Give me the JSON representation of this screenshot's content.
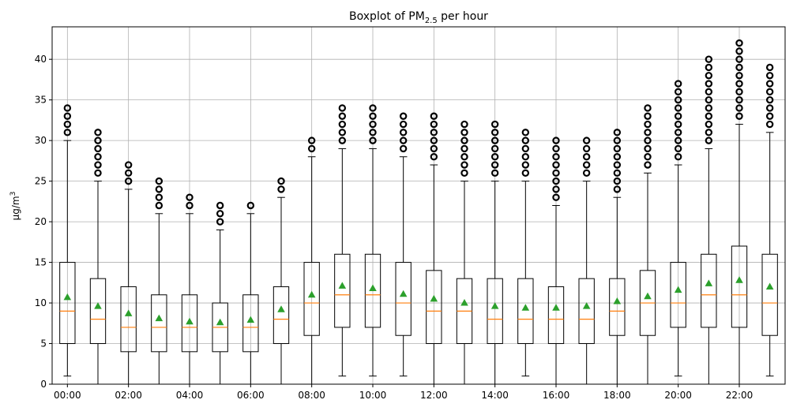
{
  "chart_data": {
    "type": "boxplot",
    "title": {
      "text": "Boxplot of PM",
      "subscript": "2.5",
      "suffix": " per hour"
    },
    "ylabel": {
      "text": "μg/m",
      "superscript": "3"
    },
    "xlabel": "",
    "ylim": [
      0,
      44
    ],
    "yticks": [
      0,
      5,
      10,
      15,
      20,
      25,
      30,
      35,
      40
    ],
    "grid": true,
    "colors": {
      "box": "#000000",
      "median": "#ff7f0e",
      "mean_marker": "#2ca02c",
      "grid": "#b0b0b0"
    },
    "xtick_labels": [
      {
        "index": 0,
        "label": "00:00"
      },
      {
        "index": 2,
        "label": "02:00"
      },
      {
        "index": 4,
        "label": "04:00"
      },
      {
        "index": 6,
        "label": "06:00"
      },
      {
        "index": 8,
        "label": "08:00"
      },
      {
        "index": 10,
        "label": "10:00"
      },
      {
        "index": 12,
        "label": "12:00"
      },
      {
        "index": 14,
        "label": "14:00"
      },
      {
        "index": 16,
        "label": "16:00"
      },
      {
        "index": 18,
        "label": "18:00"
      },
      {
        "index": 20,
        "label": "20:00"
      },
      {
        "index": 22,
        "label": "22:00"
      }
    ],
    "boxes": [
      {
        "hour": "00:00",
        "whisker_low": 1,
        "q1": 5,
        "median": 9,
        "q3": 15,
        "whisker_high": 30,
        "mean": 10.7,
        "outliers": [
          31,
          32,
          33,
          34
        ]
      },
      {
        "hour": "01:00",
        "whisker_low": 0,
        "q1": 5,
        "median": 8,
        "q3": 13,
        "whisker_high": 25,
        "mean": 9.6,
        "outliers": [
          26,
          27,
          28,
          29,
          30,
          31
        ]
      },
      {
        "hour": "02:00",
        "whisker_low": 0,
        "q1": 4,
        "median": 7,
        "q3": 12,
        "whisker_high": 24,
        "mean": 8.7,
        "outliers": [
          25,
          26,
          27
        ]
      },
      {
        "hour": "03:00",
        "whisker_low": 0,
        "q1": 4,
        "median": 7,
        "q3": 11,
        "whisker_high": 21,
        "mean": 8.1,
        "outliers": [
          22,
          23,
          24,
          25
        ]
      },
      {
        "hour": "04:00",
        "whisker_low": 0,
        "q1": 4,
        "median": 7,
        "q3": 11,
        "whisker_high": 21,
        "mean": 7.7,
        "outliers": [
          22,
          23
        ]
      },
      {
        "hour": "05:00",
        "whisker_low": 0,
        "q1": 4,
        "median": 7,
        "q3": 10,
        "whisker_high": 19,
        "mean": 7.6,
        "outliers": [
          20,
          21,
          22
        ]
      },
      {
        "hour": "06:00",
        "whisker_low": 0,
        "q1": 4,
        "median": 7,
        "q3": 11,
        "whisker_high": 21,
        "mean": 7.9,
        "outliers": [
          22
        ]
      },
      {
        "hour": "07:00",
        "whisker_low": 0,
        "q1": 5,
        "median": 8,
        "q3": 12,
        "whisker_high": 23,
        "mean": 9.2,
        "outliers": [
          24,
          25
        ]
      },
      {
        "hour": "08:00",
        "whisker_low": 0,
        "q1": 6,
        "median": 10,
        "q3": 15,
        "whisker_high": 28,
        "mean": 11.0,
        "outliers": [
          29,
          30
        ]
      },
      {
        "hour": "09:00",
        "whisker_low": 1,
        "q1": 7,
        "median": 11,
        "q3": 16,
        "whisker_high": 29,
        "mean": 12.1,
        "outliers": [
          30,
          31,
          32,
          33,
          34
        ]
      },
      {
        "hour": "10:00",
        "whisker_low": 1,
        "q1": 7,
        "median": 11,
        "q3": 16,
        "whisker_high": 29,
        "mean": 11.8,
        "outliers": [
          30,
          31,
          32,
          33,
          34
        ]
      },
      {
        "hour": "11:00",
        "whisker_low": 1,
        "q1": 6,
        "median": 10,
        "q3": 15,
        "whisker_high": 28,
        "mean": 11.1,
        "outliers": [
          29,
          30,
          31,
          32,
          33
        ]
      },
      {
        "hour": "12:00",
        "whisker_low": 0,
        "q1": 5,
        "median": 9,
        "q3": 14,
        "whisker_high": 27,
        "mean": 10.5,
        "outliers": [
          28,
          29,
          30,
          31,
          32,
          33
        ]
      },
      {
        "hour": "13:00",
        "whisker_low": 0,
        "q1": 5,
        "median": 9,
        "q3": 13,
        "whisker_high": 25,
        "mean": 10.0,
        "outliers": [
          26,
          27,
          28,
          29,
          30,
          31,
          32
        ]
      },
      {
        "hour": "14:00",
        "whisker_low": 0,
        "q1": 5,
        "median": 8,
        "q3": 13,
        "whisker_high": 25,
        "mean": 9.6,
        "outliers": [
          26,
          27,
          28,
          29,
          30,
          31,
          32
        ]
      },
      {
        "hour": "15:00",
        "whisker_low": 1,
        "q1": 5,
        "median": 8,
        "q3": 13,
        "whisker_high": 25,
        "mean": 9.4,
        "outliers": [
          26,
          27,
          28,
          29,
          30,
          31
        ]
      },
      {
        "hour": "16:00",
        "whisker_low": 0,
        "q1": 5,
        "median": 8,
        "q3": 12,
        "whisker_high": 22,
        "mean": 9.4,
        "outliers": [
          23,
          24,
          25,
          26,
          27,
          28,
          29,
          30
        ]
      },
      {
        "hour": "17:00",
        "whisker_low": 0,
        "q1": 5,
        "median": 8,
        "q3": 13,
        "whisker_high": 25,
        "mean": 9.6,
        "outliers": [
          26,
          27,
          28,
          29,
          30
        ]
      },
      {
        "hour": "18:00",
        "whisker_low": 0,
        "q1": 6,
        "median": 9,
        "q3": 13,
        "whisker_high": 23,
        "mean": 10.2,
        "outliers": [
          24,
          25,
          26,
          27,
          28,
          29,
          30,
          31
        ]
      },
      {
        "hour": "19:00",
        "whisker_low": 0,
        "q1": 6,
        "median": 10,
        "q3": 14,
        "whisker_high": 26,
        "mean": 10.8,
        "outliers": [
          27,
          28,
          29,
          30,
          31,
          32,
          33,
          34
        ]
      },
      {
        "hour": "20:00",
        "whisker_low": 1,
        "q1": 7,
        "median": 10,
        "q3": 15,
        "whisker_high": 27,
        "mean": 11.6,
        "outliers": [
          28,
          29,
          30,
          31,
          32,
          33,
          34,
          35,
          36,
          37
        ]
      },
      {
        "hour": "21:00",
        "whisker_low": 0,
        "q1": 7,
        "median": 11,
        "q3": 16,
        "whisker_high": 29,
        "mean": 12.4,
        "outliers": [
          30,
          31,
          32,
          33,
          34,
          35,
          36,
          37,
          38,
          39,
          40
        ]
      },
      {
        "hour": "22:00",
        "whisker_low": 0,
        "q1": 7,
        "median": 11,
        "q3": 17,
        "whisker_high": 32,
        "mean": 12.8,
        "outliers": [
          33,
          34,
          35,
          36,
          37,
          38,
          39,
          40,
          41,
          42
        ]
      },
      {
        "hour": "23:00",
        "whisker_low": 1,
        "q1": 6,
        "median": 10,
        "q3": 16,
        "whisker_high": 31,
        "mean": 12.0,
        "outliers": [
          32,
          33,
          34,
          35,
          36,
          37,
          38,
          39
        ]
      }
    ]
  }
}
